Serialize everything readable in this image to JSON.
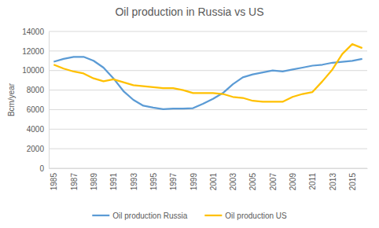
{
  "chart_data": {
    "type": "line",
    "title": "Oil production in Russia vs US",
    "y_label": "Bcm/year",
    "categories": [
      "1985",
      null,
      "1987",
      null,
      "1989",
      null,
      "1991",
      null,
      "1993",
      null,
      "1995",
      null,
      "1997",
      null,
      "1999",
      null,
      "2001",
      null,
      "2003",
      null,
      "2005",
      null,
      "2007",
      null,
      "2009",
      null,
      "2011",
      null,
      "2013",
      null,
      "2015",
      null
    ],
    "series": [
      {
        "name": "Oil production Russia",
        "color": "#5b9bd5",
        "values": [
          10900,
          11200,
          11400,
          11400,
          11000,
          10300,
          9200,
          7900,
          7000,
          6400,
          6200,
          6050,
          6100,
          6100,
          6150,
          6600,
          7100,
          7700,
          8600,
          9300,
          9600,
          9800,
          10000,
          9900,
          10100,
          10300,
          10500,
          10600,
          10800,
          10900,
          11000,
          11200
        ]
      },
      {
        "name": "Oil production US",
        "color": "#ffc000",
        "values": [
          10600,
          10200,
          9900,
          9700,
          9200,
          8900,
          9100,
          8800,
          8500,
          8400,
          8300,
          8200,
          8200,
          8000,
          7700,
          7700,
          7700,
          7600,
          7300,
          7200,
          6900,
          6800,
          6800,
          6800,
          7300,
          7600,
          7800,
          8900,
          10100,
          11700,
          12700,
          12300
        ]
      }
    ],
    "ylim": [
      0,
      14000
    ],
    "yticks": [
      0,
      2000,
      4000,
      6000,
      8000,
      10000,
      12000,
      14000
    ],
    "grid": true,
    "legend": "bottom"
  }
}
